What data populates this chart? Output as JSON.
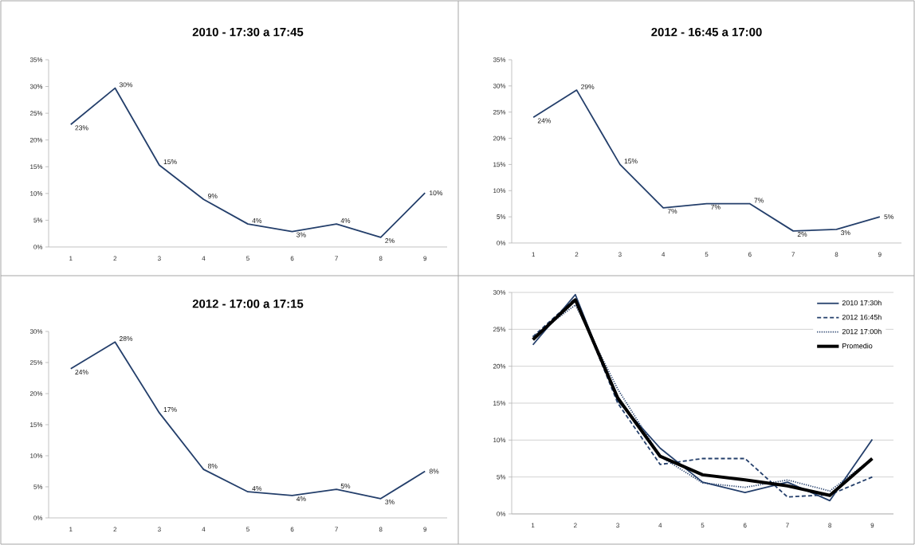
{
  "chart_data": [
    {
      "type": "line",
      "title": "2010 - 17:30 a 17:45",
      "categories": [
        "1",
        "2",
        "3",
        "4",
        "5",
        "6",
        "7",
        "8",
        "9"
      ],
      "ylim": [
        0,
        35
      ],
      "yticks": [
        {
          "value": 0,
          "label": "0%"
        },
        {
          "value": 5,
          "label": "5%"
        },
        {
          "value": 10,
          "label": "10%"
        },
        {
          "value": 15,
          "label": "15%"
        },
        {
          "value": 20,
          "label": "20%"
        },
        {
          "value": 25,
          "label": "25%"
        },
        {
          "value": 30,
          "label": "30%"
        },
        {
          "value": 35,
          "label": "35%"
        }
      ],
      "grid": false,
      "legend": false,
      "marker": "none",
      "series": [
        {
          "color": "#243f6b",
          "line_style": "solid",
          "values": [
            22.9,
            29.7,
            15.3,
            8.9,
            4.3,
            2.9,
            4.3,
            1.8,
            10.1
          ],
          "value_labels": [
            "23%",
            "30%",
            "15%",
            "9%",
            "4%",
            "3%",
            "4%",
            "2%",
            "10%"
          ]
        }
      ]
    },
    {
      "type": "line",
      "title": "2012 - 16:45 a 17:00",
      "categories": [
        "1",
        "2",
        "3",
        "4",
        "5",
        "6",
        "7",
        "8",
        "9"
      ],
      "ylim": [
        0,
        35
      ],
      "yticks": [
        {
          "value": 0,
          "label": "0%"
        },
        {
          "value": 5,
          "label": "5%"
        },
        {
          "value": 10,
          "label": "10%"
        },
        {
          "value": 15,
          "label": "15%"
        },
        {
          "value": 20,
          "label": "20%"
        },
        {
          "value": 25,
          "label": "25%"
        },
        {
          "value": 30,
          "label": "30%"
        },
        {
          "value": 35,
          "label": "35%"
        }
      ],
      "grid": false,
      "legend": false,
      "marker": "none",
      "series": [
        {
          "color": "#243f6b",
          "line_style": "solid",
          "values": [
            24.0,
            29.2,
            15.0,
            6.7,
            7.5,
            7.5,
            2.3,
            2.6,
            5.0
          ],
          "value_labels": [
            "24%",
            "29%",
            "15%",
            "7%",
            "7%",
            "7%",
            "2%",
            "3%",
            "5%"
          ]
        }
      ]
    },
    {
      "type": "line",
      "title": "2012 - 17:00 a 17:15",
      "categories": [
        "1",
        "2",
        "3",
        "4",
        "5",
        "6",
        "7",
        "8",
        "9"
      ],
      "ylim": [
        0,
        30
      ],
      "yticks": [
        {
          "value": 0,
          "label": "0%"
        },
        {
          "value": 5,
          "label": "5%"
        },
        {
          "value": 10,
          "label": "10%"
        },
        {
          "value": 15,
          "label": "15%"
        },
        {
          "value": 20,
          "label": "20%"
        },
        {
          "value": 25,
          "label": "25%"
        },
        {
          "value": 30,
          "label": "30%"
        }
      ],
      "grid": false,
      "legend": false,
      "marker": "none",
      "series": [
        {
          "color": "#243f6b",
          "line_style": "solid",
          "values": [
            24.0,
            28.3,
            16.9,
            7.8,
            4.2,
            3.6,
            4.6,
            3.1,
            7.5
          ],
          "value_labels": [
            "24%",
            "28%",
            "17%",
            "8%",
            "4%",
            "4%",
            "5%",
            "3%",
            "8%"
          ]
        }
      ]
    },
    {
      "type": "line",
      "categories": [
        "1",
        "2",
        "3",
        "4",
        "5",
        "6",
        "7",
        "8",
        "9"
      ],
      "ylim": [
        0,
        30
      ],
      "yticks": [
        {
          "value": 0,
          "label": "0%"
        },
        {
          "value": 5,
          "label": "5%"
        },
        {
          "value": 10,
          "label": "10%"
        },
        {
          "value": 15,
          "label": "15%"
        },
        {
          "value": 20,
          "label": "20%"
        },
        {
          "value": 25,
          "label": "25%"
        },
        {
          "value": 30,
          "label": "30%"
        }
      ],
      "grid": "y",
      "legend": "top right",
      "marker": "none",
      "series": [
        {
          "name": "2010 17:30h",
          "color": "#243f6b",
          "line_style": "solid",
          "values": [
            22.9,
            29.7,
            15.3,
            8.9,
            4.3,
            2.9,
            4.3,
            1.8,
            10.1
          ]
        },
        {
          "name": "2012 16:45h",
          "color": "#243f6b",
          "line_style": "dashed",
          "values": [
            24.0,
            29.2,
            15.0,
            6.7,
            7.5,
            7.5,
            2.3,
            2.6,
            5.0
          ]
        },
        {
          "name": "2012 17:00h",
          "color": "#243f6b",
          "line_style": "dotted",
          "values": [
            24.0,
            28.3,
            16.9,
            7.8,
            4.2,
            3.6,
            4.6,
            3.1,
            7.5
          ]
        },
        {
          "name": "Promedio",
          "color": "#000000",
          "line_style": "solid",
          "values": [
            23.6,
            29.0,
            15.7,
            7.8,
            5.3,
            4.6,
            3.8,
            2.5,
            7.5
          ]
        }
      ]
    }
  ]
}
